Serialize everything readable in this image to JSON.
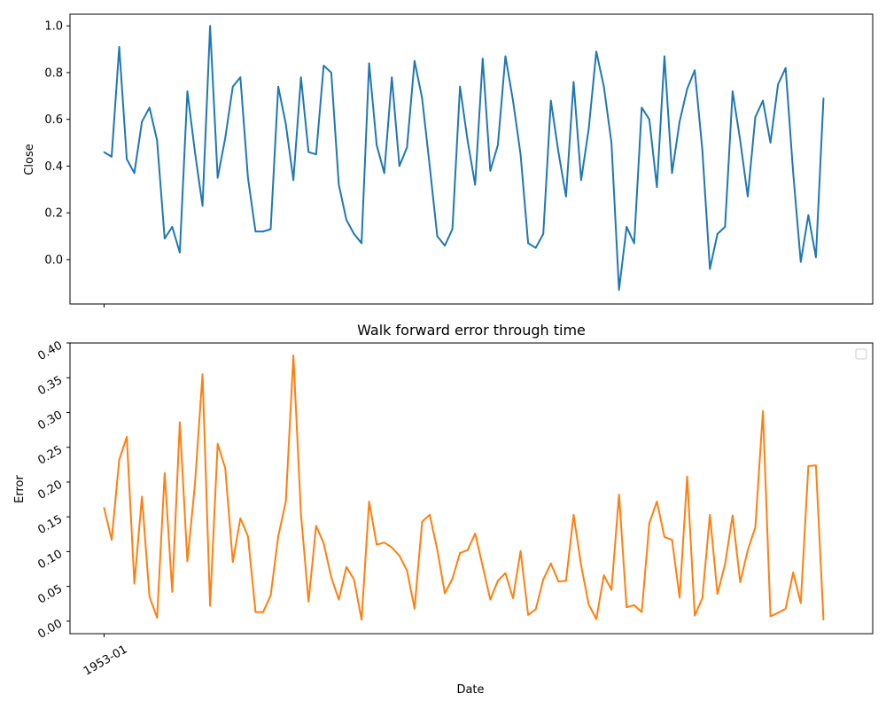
{
  "figure": {
    "xlabel": "Date"
  },
  "chart_data": [
    {
      "type": "line",
      "title": "",
      "xlabel": "",
      "ylabel": "Close",
      "ylim": [
        -0.19,
        1.05
      ],
      "yticks": [
        "0.0",
        "0.2",
        "0.4",
        "0.6",
        "0.8",
        "1.0"
      ],
      "ytick_values": [
        0.0,
        0.2,
        0.4,
        0.6,
        0.8,
        1.0
      ],
      "xtick_values": [
        0
      ],
      "x_range": [
        -4.5,
        101.5
      ],
      "grid": false,
      "color": "#1f77b4",
      "series": [
        {
          "values": [
            0.46,
            0.44,
            0.91,
            0.43,
            0.37,
            0.59,
            0.65,
            0.51,
            0.09,
            0.14,
            0.03,
            0.72,
            0.46,
            0.23,
            1.0,
            0.35,
            0.52,
            0.74,
            0.78,
            0.35,
            0.12,
            0.12,
            0.13,
            0.74,
            0.58,
            0.34,
            0.78,
            0.46,
            0.45,
            0.83,
            0.8,
            0.32,
            0.17,
            0.11,
            0.07,
            0.84,
            0.49,
            0.37,
            0.78,
            0.4,
            0.48,
            0.85,
            0.69,
            0.4,
            0.1,
            0.06,
            0.13,
            0.74,
            0.51,
            0.32,
            0.86,
            0.38,
            0.49,
            0.87,
            0.68,
            0.45,
            0.07,
            0.05,
            0.11,
            0.68,
            0.46,
            0.27,
            0.76,
            0.34,
            0.56,
            0.89,
            0.74,
            0.5,
            -0.13,
            0.14,
            0.07,
            0.65,
            0.6,
            0.31,
            0.87,
            0.37,
            0.59,
            0.73,
            0.81,
            0.47,
            -0.04,
            0.11,
            0.14,
            0.72,
            0.51,
            0.27,
            0.61,
            0.68,
            0.5,
            0.75,
            0.82,
            0.37,
            -0.01,
            0.19,
            0.01,
            0.69
          ]
        }
      ]
    },
    {
      "type": "line",
      "title": "Walk forward error through time",
      "xlabel": "Date",
      "ylabel": "Error",
      "ylim": [
        -0.018,
        0.4
      ],
      "yticks": [
        "0.00",
        "0.05",
        "0.10",
        "0.15",
        "0.20",
        "0.25",
        "0.30",
        "0.35",
        "0.40"
      ],
      "ytick_values": [
        0.0,
        0.05,
        0.1,
        0.15,
        0.2,
        0.25,
        0.3,
        0.35,
        0.4
      ],
      "xticks": [
        "1953-01"
      ],
      "xtick_values": [
        0
      ],
      "x_range": [
        -4.5,
        101.5
      ],
      "grid": false,
      "legend": "top-right",
      "color": "#ff7f0e",
      "series": [
        {
          "values": [
            0.163,
            0.117,
            0.232,
            0.265,
            0.054,
            0.179,
            0.035,
            0.005,
            0.213,
            0.042,
            0.286,
            0.086,
            0.197,
            0.355,
            0.022,
            0.255,
            0.22,
            0.085,
            0.148,
            0.122,
            0.013,
            0.013,
            0.037,
            0.122,
            0.172,
            0.382,
            0.154,
            0.028,
            0.137,
            0.112,
            0.063,
            0.031,
            0.078,
            0.06,
            0.002,
            0.172,
            0.11,
            0.113,
            0.106,
            0.094,
            0.073,
            0.018,
            0.143,
            0.153,
            0.103,
            0.04,
            0.061,
            0.098,
            0.102,
            0.126,
            0.079,
            0.031,
            0.058,
            0.069,
            0.033,
            0.101,
            0.009,
            0.017,
            0.06,
            0.083,
            0.057,
            0.058,
            0.153,
            0.08,
            0.024,
            0.003,
            0.066,
            0.045,
            0.182,
            0.02,
            0.023,
            0.013,
            0.141,
            0.172,
            0.121,
            0.117,
            0.034,
            0.208,
            0.008,
            0.033,
            0.153,
            0.039,
            0.082,
            0.152,
            0.056,
            0.102,
            0.135,
            0.302,
            0.007,
            0.012,
            0.018,
            0.07,
            0.026,
            0.223,
            0.224,
            0.002
          ]
        }
      ]
    }
  ]
}
